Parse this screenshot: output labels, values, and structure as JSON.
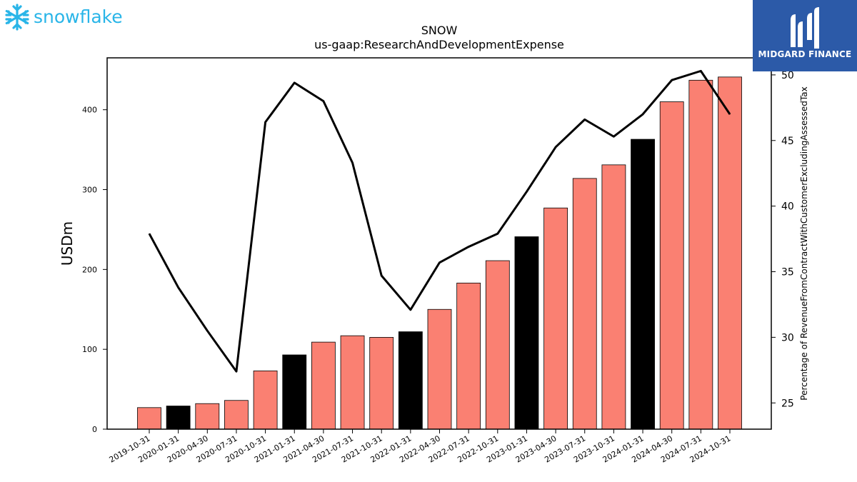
{
  "brand": {
    "company_logo_text": "snowflake",
    "company_logo_color": "#29b5e8",
    "publisher_name": "MIDGARD FINANCE",
    "publisher_bg_color": "#2c5aa8"
  },
  "chart_data": {
    "type": "bar",
    "title": "SNOW",
    "subtitle": "us-gaap:ResearchAndDevelopmentExpense",
    "ylabel": "USDm",
    "y2label": "Percentage of RevenueFromContractWithCustomerExcludingAssessedTax",
    "ylim": [
      0,
      465
    ],
    "y2lim": [
      23,
      51.3
    ],
    "yticks": [
      0,
      100,
      200,
      300,
      400
    ],
    "y2ticks": [
      25,
      30,
      35,
      40,
      45,
      50
    ],
    "categories": [
      "2019-10-31",
      "2020-01-31",
      "2020-04-30",
      "2020-07-31",
      "2020-10-31",
      "2021-01-31",
      "2021-04-30",
      "2021-07-31",
      "2021-10-31",
      "2022-01-31",
      "2022-04-30",
      "2022-07-31",
      "2022-10-31",
      "2023-01-31",
      "2023-04-30",
      "2023-07-31",
      "2023-10-31",
      "2024-01-31",
      "2024-04-30",
      "2024-07-31",
      "2024-10-31"
    ],
    "values": [
      27,
      29,
      32,
      36,
      73,
      93,
      109,
      117,
      115,
      122,
      150,
      183,
      211,
      241,
      277,
      314,
      331,
      363,
      410,
      437,
      441
    ],
    "highlight": [
      false,
      true,
      false,
      false,
      false,
      true,
      false,
      false,
      false,
      true,
      false,
      false,
      false,
      true,
      false,
      false,
      false,
      true,
      false,
      false,
      false
    ],
    "bar_color": "#fa8072",
    "highlight_color": "#000000",
    "line_series": {
      "axis": "right",
      "color": "#000000",
      "values": [
        37.9,
        33.8,
        30.5,
        27.4,
        46.4,
        49.4,
        48.0,
        43.3,
        34.7,
        32.1,
        35.7,
        36.9,
        37.9,
        41.1,
        44.5,
        46.6,
        45.3,
        47.0,
        49.6,
        50.3,
        47.0
      ]
    }
  }
}
